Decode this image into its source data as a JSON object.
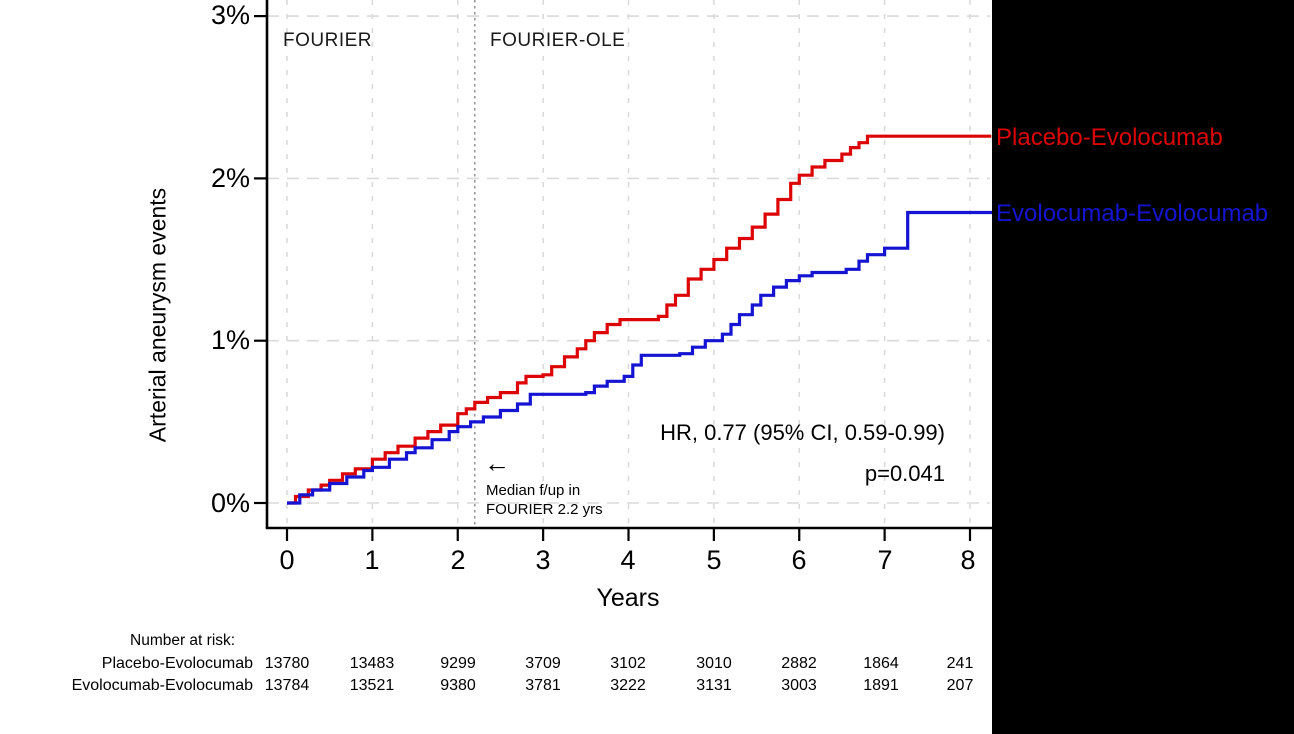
{
  "phases": {
    "fourier": "FOURIER",
    "fourier_ole": "FOURIER-OLE"
  },
  "y_axis": {
    "title": "Arterial aneurysm events",
    "ticks": [
      "0%",
      "1%",
      "2%",
      "3%"
    ]
  },
  "x_axis": {
    "title": "Years",
    "ticks": [
      "0",
      "1",
      "2",
      "3",
      "4",
      "5",
      "6",
      "7",
      "8"
    ]
  },
  "annotations": {
    "hr": "HR, 0.77 (95% CI, 0.59-0.99)",
    "p_value": "p=0.041",
    "arrow": "←",
    "median_line1": "Median f/up in",
    "median_line2": "FOURIER 2.2 yrs"
  },
  "legend": {
    "placebo": "Placebo-Evolocumab",
    "evolocumab": "Evolocumab-Evolocumab"
  },
  "risk_table": {
    "header": "Number at risk:",
    "rows": [
      {
        "label": "Placebo-Evolocumab",
        "values": [
          "13780",
          "13483",
          "9299",
          "3709",
          "3102",
          "3010",
          "2882",
          "1864",
          "241"
        ]
      },
      {
        "label": "Evolocumab-Evolocumab",
        "values": [
          "13784",
          "13521",
          "9380",
          "3781",
          "3222",
          "3131",
          "3003",
          "1891",
          "207"
        ]
      }
    ]
  },
  "colors": {
    "placebo": "#dc0404",
    "evolocumab": "#1414d2",
    "grid": "#dadada",
    "median_line": "#8c8c8c",
    "axis": "#000000",
    "panel": "#000000"
  },
  "chart_data": {
    "type": "line",
    "subtype": "kaplan-meier-cumulative-incidence-step",
    "title": "",
    "xlabel": "Years",
    "ylabel": "Arterial aneurysm events",
    "x_range_years": [
      0,
      8
    ],
    "y_range_percent": [
      0,
      3
    ],
    "grid": true,
    "legend_position": "right-of-plot",
    "median_followup_line_years": 2.2,
    "hazard_ratio": "0.77",
    "ci_95": "0.59-0.99",
    "p_value": "0.041",
    "series": [
      {
        "name": "Placebo-Evolocumab",
        "color": "#dc0404",
        "points_year_percent": [
          [
            0,
            0
          ],
          [
            0.1,
            0.04
          ],
          [
            0.25,
            0.08
          ],
          [
            0.4,
            0.11
          ],
          [
            0.5,
            0.14
          ],
          [
            0.65,
            0.18
          ],
          [
            0.8,
            0.21
          ],
          [
            1.0,
            0.27
          ],
          [
            1.15,
            0.31
          ],
          [
            1.3,
            0.35
          ],
          [
            1.5,
            0.4
          ],
          [
            1.65,
            0.44
          ],
          [
            1.8,
            0.48
          ],
          [
            2.0,
            0.55
          ],
          [
            2.1,
            0.58
          ],
          [
            2.2,
            0.62
          ],
          [
            2.35,
            0.65
          ],
          [
            2.5,
            0.68
          ],
          [
            2.7,
            0.74
          ],
          [
            2.8,
            0.78
          ],
          [
            3.0,
            0.79
          ],
          [
            3.1,
            0.84
          ],
          [
            3.25,
            0.9
          ],
          [
            3.4,
            0.95
          ],
          [
            3.5,
            1.0
          ],
          [
            3.6,
            1.05
          ],
          [
            3.75,
            1.1
          ],
          [
            3.9,
            1.13
          ],
          [
            4.35,
            1.15
          ],
          [
            4.45,
            1.22
          ],
          [
            4.55,
            1.28
          ],
          [
            4.7,
            1.38
          ],
          [
            4.85,
            1.44
          ],
          [
            5.0,
            1.5
          ],
          [
            5.15,
            1.57
          ],
          [
            5.3,
            1.63
          ],
          [
            5.45,
            1.7
          ],
          [
            5.6,
            1.78
          ],
          [
            5.75,
            1.87
          ],
          [
            5.9,
            1.97
          ],
          [
            6.0,
            2.02
          ],
          [
            6.15,
            2.07
          ],
          [
            6.3,
            2.11
          ],
          [
            6.5,
            2.15
          ],
          [
            6.6,
            2.19
          ],
          [
            6.7,
            2.22
          ],
          [
            6.8,
            2.26
          ],
          [
            8.25,
            2.26
          ]
        ]
      },
      {
        "name": "Evolocumab-Evolocumab",
        "color": "#1414d2",
        "points_year_percent": [
          [
            0,
            0
          ],
          [
            0.15,
            0.05
          ],
          [
            0.3,
            0.08
          ],
          [
            0.5,
            0.12
          ],
          [
            0.7,
            0.16
          ],
          [
            0.9,
            0.2
          ],
          [
            1.0,
            0.22
          ],
          [
            1.2,
            0.27
          ],
          [
            1.4,
            0.31
          ],
          [
            1.5,
            0.34
          ],
          [
            1.7,
            0.39
          ],
          [
            1.9,
            0.44
          ],
          [
            2.0,
            0.47
          ],
          [
            2.15,
            0.5
          ],
          [
            2.3,
            0.53
          ],
          [
            2.5,
            0.57
          ],
          [
            2.7,
            0.61
          ],
          [
            2.85,
            0.67
          ],
          [
            3.5,
            0.68
          ],
          [
            3.6,
            0.72
          ],
          [
            3.75,
            0.75
          ],
          [
            3.95,
            0.78
          ],
          [
            4.05,
            0.85
          ],
          [
            4.15,
            0.91
          ],
          [
            4.6,
            0.92
          ],
          [
            4.75,
            0.96
          ],
          [
            4.9,
            1.0
          ],
          [
            5.1,
            1.04
          ],
          [
            5.2,
            1.1
          ],
          [
            5.3,
            1.16
          ],
          [
            5.45,
            1.22
          ],
          [
            5.55,
            1.28
          ],
          [
            5.7,
            1.33
          ],
          [
            5.85,
            1.37
          ],
          [
            6.0,
            1.4
          ],
          [
            6.15,
            1.42
          ],
          [
            6.55,
            1.44
          ],
          [
            6.7,
            1.49
          ],
          [
            6.8,
            1.53
          ],
          [
            7.0,
            1.57
          ],
          [
            7.27,
            1.79
          ],
          [
            8.25,
            1.8
          ]
        ]
      }
    ],
    "number_at_risk": {
      "years": [
        0,
        1,
        2,
        3,
        4,
        5,
        6,
        7,
        8
      ],
      "Placebo-Evolocumab": [
        13780,
        13483,
        9299,
        3709,
        3102,
        3010,
        2882,
        1864,
        241
      ],
      "Evolocumab-Evolocumab": [
        13784,
        13521,
        9380,
        3781,
        3222,
        3131,
        3003,
        1891,
        207
      ]
    }
  }
}
